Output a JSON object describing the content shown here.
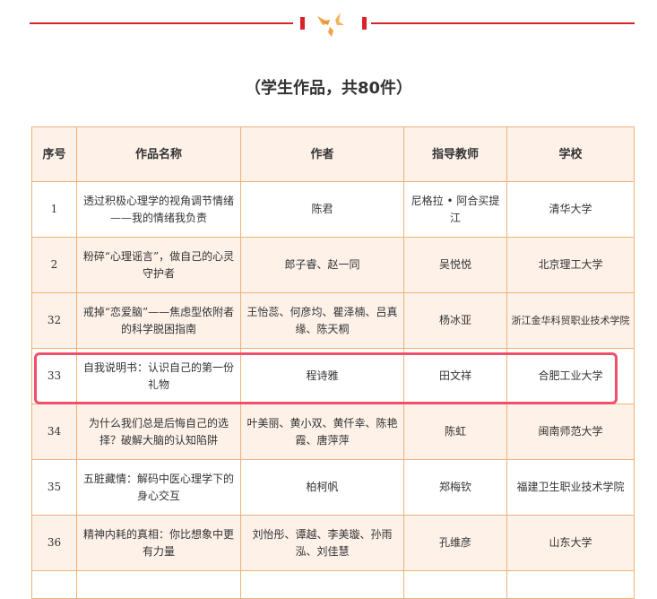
{
  "header": {
    "title": "（学生作品，共80件）",
    "icon": "doves-icon",
    "accent_color": "#d9232b"
  },
  "table": {
    "columns": [
      "序号",
      "作品名称",
      "作者",
      "指导教师",
      "学校"
    ],
    "rows": [
      {
        "no": "1",
        "title": "透过积极心理学的视角调节情绪——我的情绪我负责",
        "author": "陈君",
        "teacher": "尼格拉 • 阿合买提江",
        "school": "清华大学"
      },
      {
        "no": "2",
        "title": "粉碎“心理谣言”，做自己的心灵守护者",
        "author": "郎子睿、赵一同",
        "teacher": "吴悦悦",
        "school": "北京理工大学"
      },
      {
        "no": "32",
        "title": "戒掉“恋爱脑”——焦虑型依附者的科学脱困指南",
        "author": "王怡蕊、何彦均、瞿泽楠、吕真缘、陈天桐",
        "teacher": "杨冰亚",
        "school": "浙江金华科贸职业技术学院"
      },
      {
        "no": "33",
        "title": "自我说明书：认识自己的第一份礼物",
        "author": "程诗雅",
        "teacher": "田文祥",
        "school": "合肥工业大学"
      },
      {
        "no": "34",
        "title": "为什么我们总是后悔自己的选择？破解大脑的认知陷阱",
        "author": "叶美丽、黄小双、黄仟幸、陈艳霞、唐萍萍",
        "teacher": "陈虹",
        "school": "闽南师范大学"
      },
      {
        "no": "35",
        "title": "五脏藏情：解码中医心理学下的身心交互",
        "author": "柏柯帆",
        "teacher": "郑梅钦",
        "school": "福建卫生职业技术学院"
      },
      {
        "no": "36",
        "title": "精神内耗的真相：你比想象中更有力量",
        "author": "刘怡彤、谭越、李美璇、孙雨泓、刘佳慧",
        "teacher": "孔维彦",
        "school": "山东大学"
      }
    ],
    "highlighted_row": "33",
    "highlight_color": "#f0506a",
    "border_color": "#f0b27a",
    "stripe_color": "#fdf1e8"
  }
}
